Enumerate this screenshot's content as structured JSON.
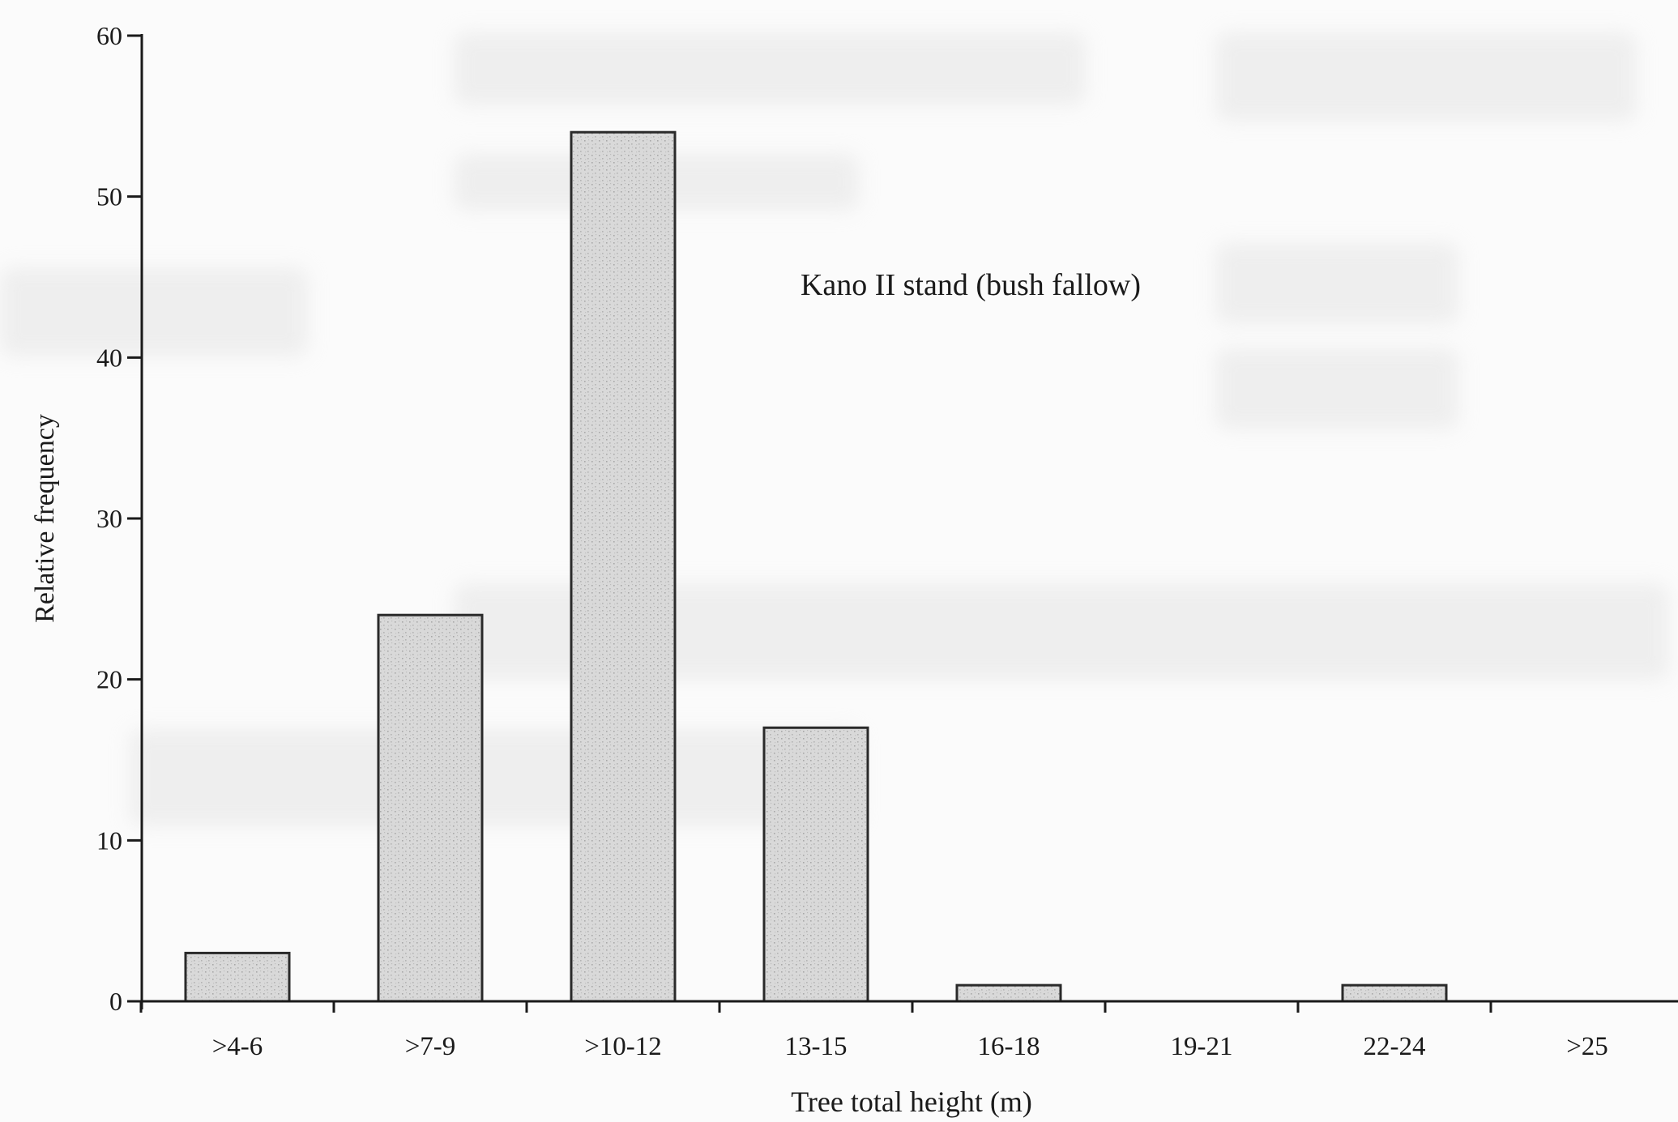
{
  "chart_data": {
    "type": "bar",
    "annotation": "Kano II stand (bush fallow)",
    "xlabel": "Tree total height (m)",
    "ylabel": "Relative frequency",
    "categories": [
      ">4-6",
      ">7-9",
      ">10-12",
      "13-15",
      "16-18",
      "19-21",
      "22-24",
      ">25"
    ],
    "values": [
      3,
      24,
      54,
      17,
      1,
      0,
      1,
      0
    ],
    "ylim": [
      0,
      60
    ],
    "yticks": [
      0,
      10,
      20,
      30,
      40,
      50,
      60
    ],
    "grid": false,
    "legend": "none",
    "colors": {
      "bar_fill": "#d8d8d8",
      "bar_stroke": "#2a2a2a",
      "axis": "#1a1a1a"
    }
  }
}
